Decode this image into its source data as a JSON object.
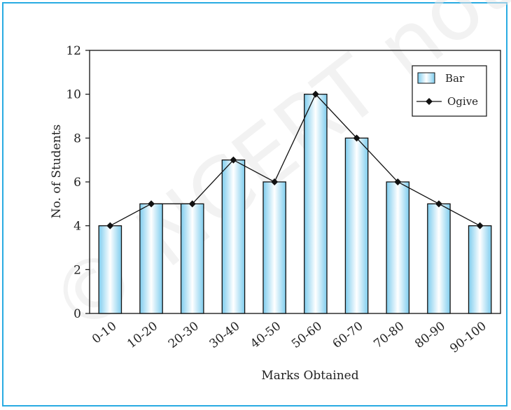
{
  "chart_data": {
    "type": "bar",
    "categories": [
      "0-10",
      "10-20",
      "20-30",
      "30-40",
      "40-50",
      "50-60",
      "60-70",
      "70-80",
      "80-90",
      "90-100"
    ],
    "series": [
      {
        "name": "Bar",
        "type": "bar",
        "values": [
          4,
          5,
          5,
          7,
          6,
          10,
          8,
          6,
          5,
          4
        ]
      },
      {
        "name": "Ogive",
        "type": "line",
        "values": [
          4,
          5,
          5,
          7,
          6,
          10,
          8,
          6,
          5,
          4
        ]
      }
    ],
    "title": "",
    "xlabel": "Marks Obtained",
    "ylabel": "No. of Students",
    "ylim": [
      0,
      12
    ],
    "yticks": [
      0,
      2,
      4,
      6,
      8,
      10,
      12
    ],
    "grid": false,
    "legend": "top-right"
  },
  "watermark": "© NCERT not to be republished",
  "colors": {
    "frame_border": "#29abe2",
    "bar_edge": "#111111",
    "bar_center": "#ffffff",
    "bar_side": "#8fd3f0",
    "line": "#111111",
    "marker": "#111111"
  }
}
